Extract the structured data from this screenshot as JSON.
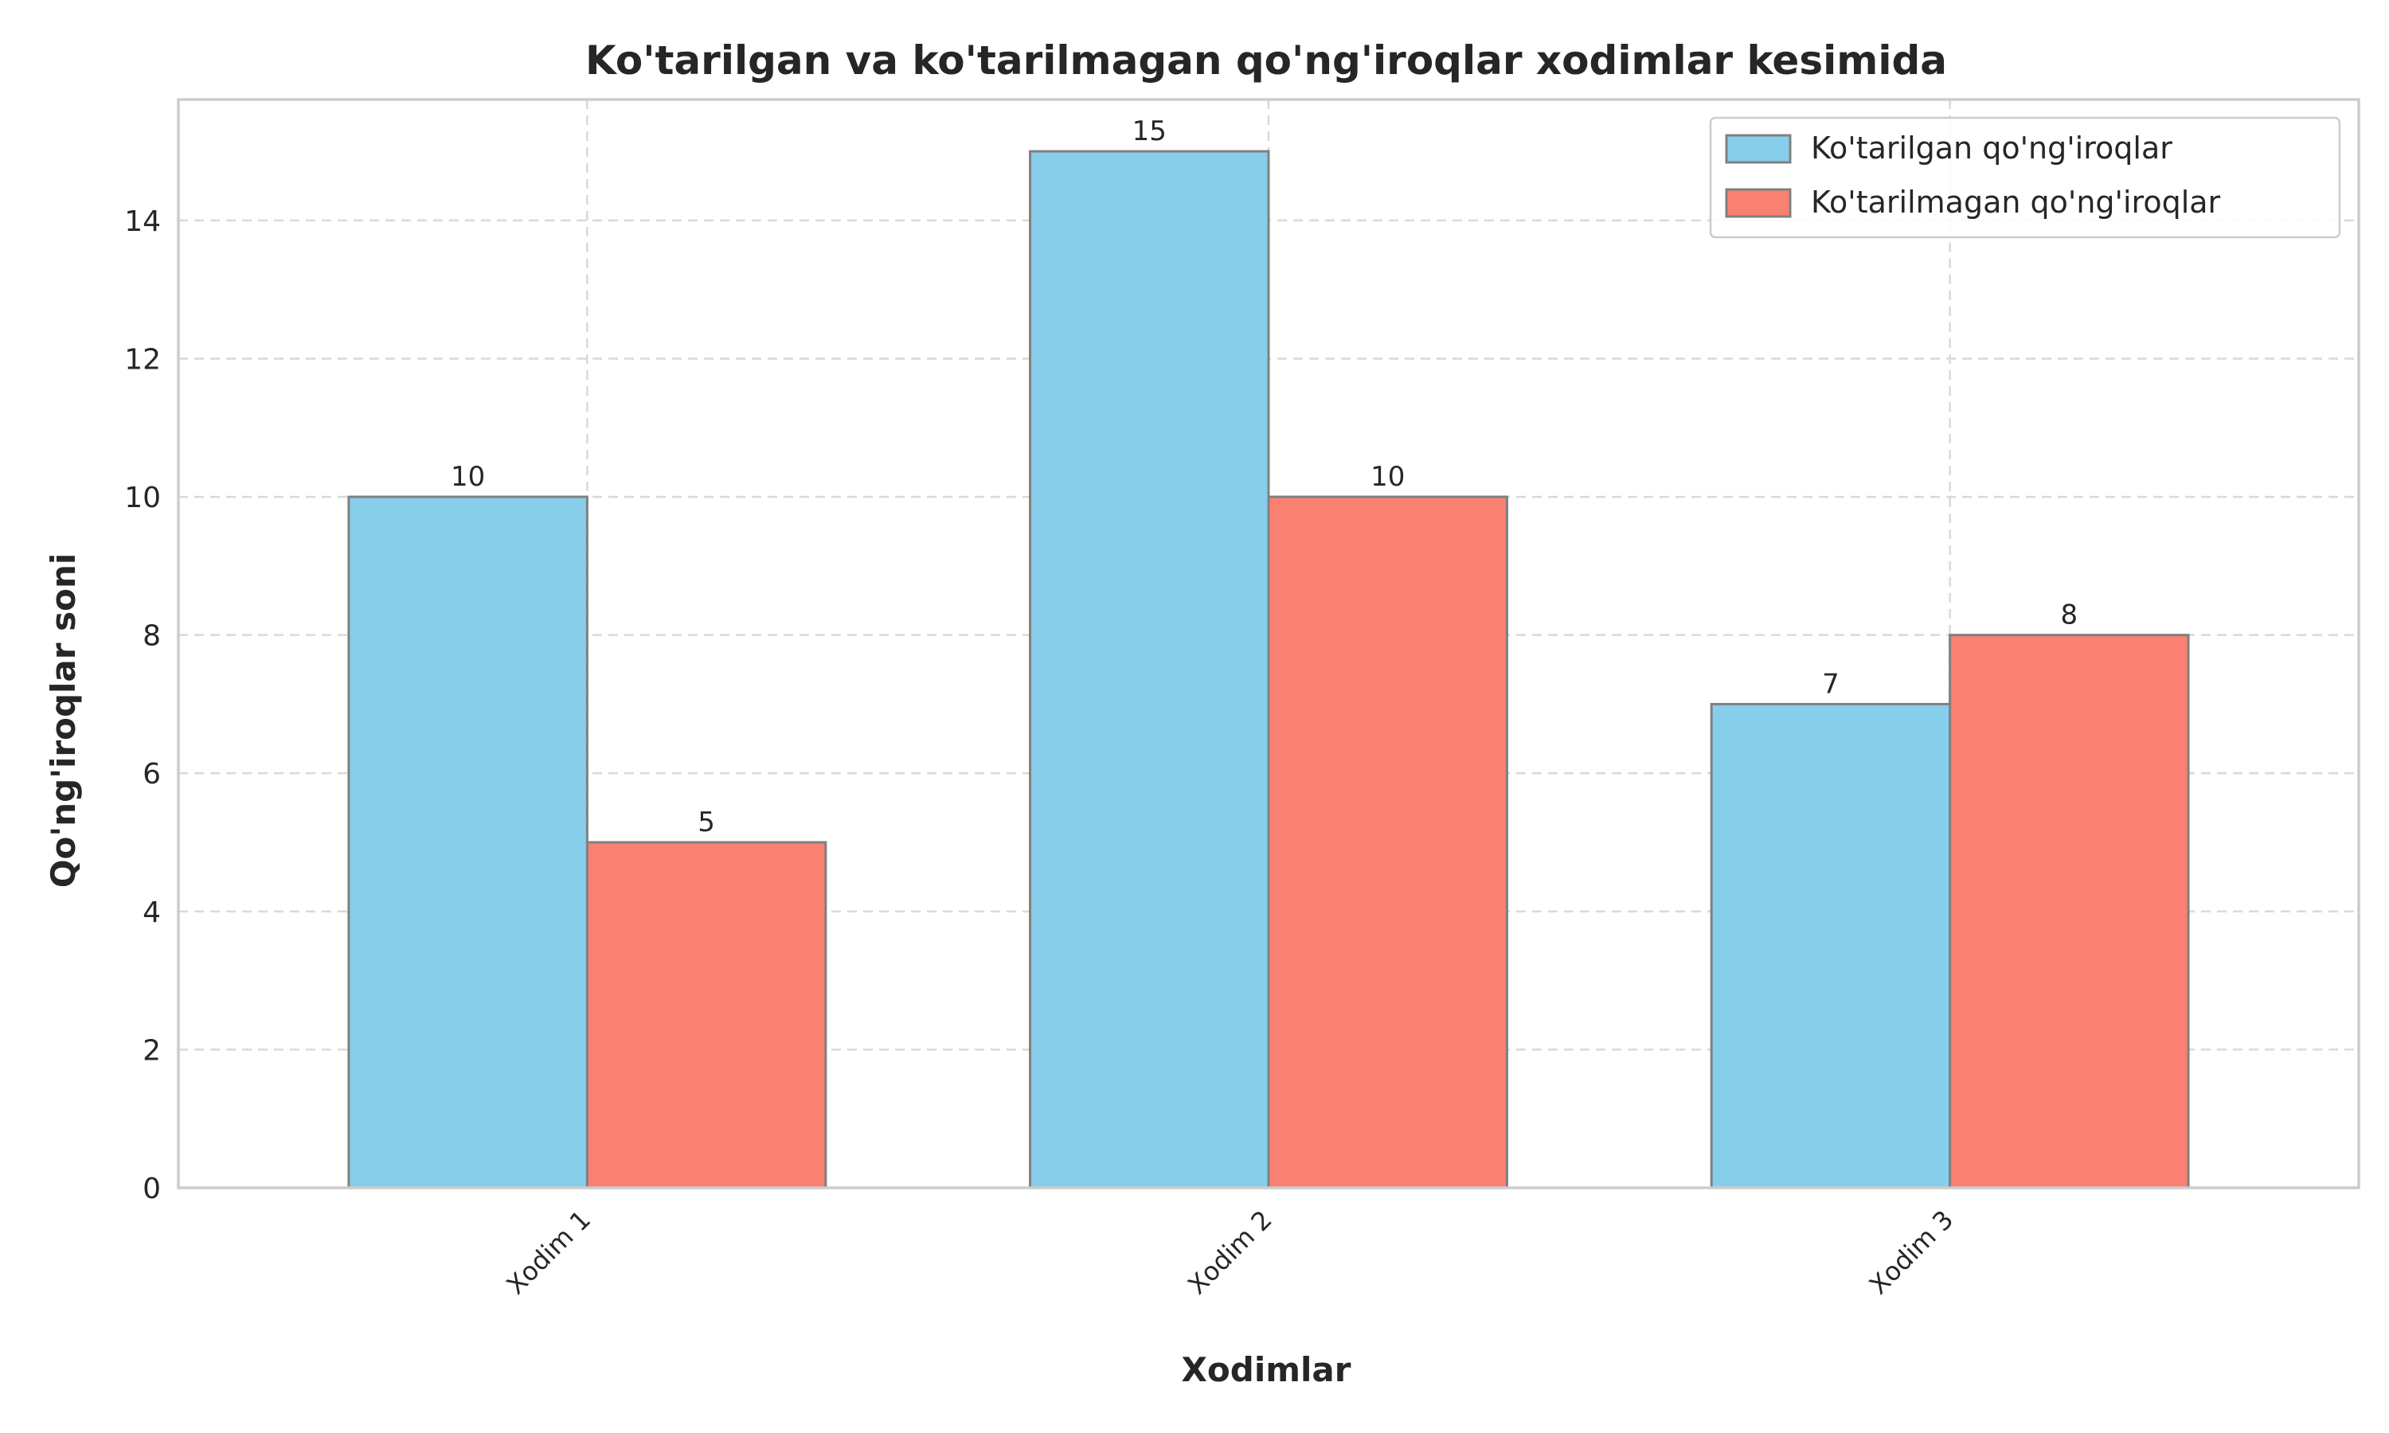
{
  "chart_data": {
    "type": "bar",
    "title": "Ko'tarilgan va ko'tarilmagan qo'ng'iroqlar xodimlar kesimida",
    "xlabel": "Xodimlar",
    "ylabel": "Qo'ng'iroqlar soni",
    "categories": [
      "Xodim 1",
      "Xodim 2",
      "Xodim 3"
    ],
    "series": [
      {
        "name": "Ko'tarilgan qo'ng'iroqlar",
        "values": [
          10,
          15,
          7
        ],
        "color": "#87CEEB"
      },
      {
        "name": "Ko'tarilmagan qo'ng'iroqlar",
        "values": [
          5,
          10,
          8
        ],
        "color": "#FA8072"
      }
    ],
    "ylim": [
      0,
      15.75
    ],
    "yticks": [
      0,
      2,
      4,
      6,
      8,
      10,
      12,
      14
    ],
    "grid": true,
    "legend_position": "top-right"
  }
}
